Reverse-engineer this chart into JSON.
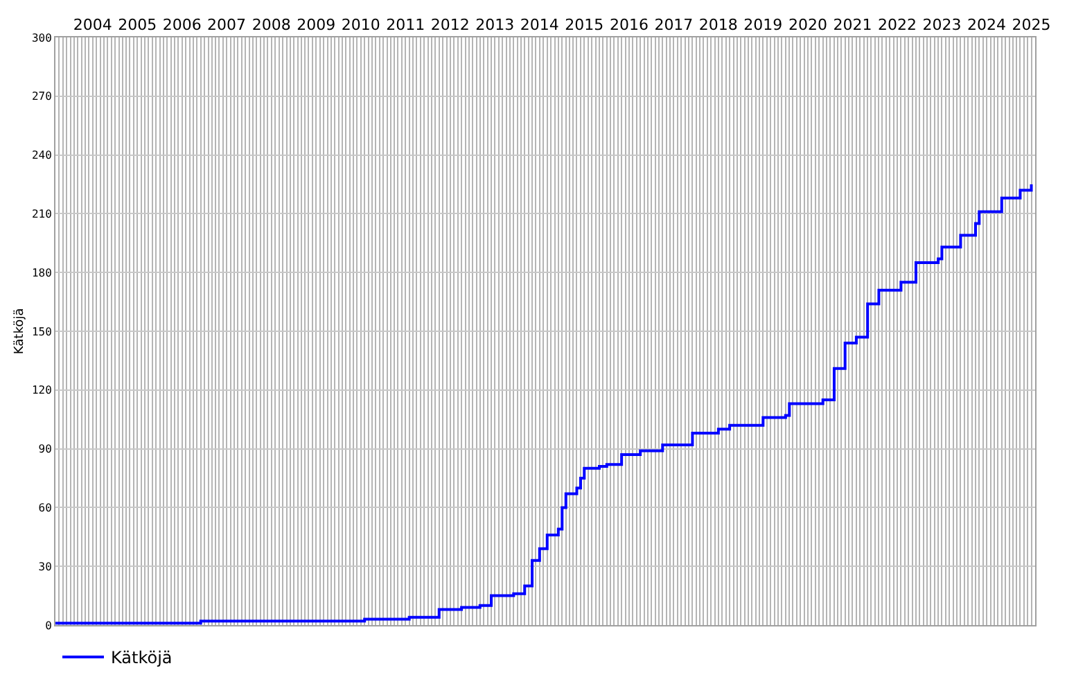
{
  "chart_data": {
    "type": "step",
    "ylabel": "Kätköjä",
    "x": [
      "2003-09",
      "2006-11",
      "2006-12",
      "2010-07",
      "2010-08",
      "2011-07",
      "2011-08",
      "2012-03",
      "2012-04",
      "2012-10",
      "2013-03",
      "2013-05",
      "2013-06",
      "2013-12",
      "2014-03",
      "2014-05",
      "2014-07",
      "2014-09",
      "2014-12",
      "2015-01",
      "2015-02",
      "2015-05",
      "2015-06",
      "2015-07",
      "2015-11",
      "2016-01",
      "2016-05",
      "2016-10",
      "2017-04",
      "2017-10",
      "2017-12",
      "2018-07",
      "2018-10",
      "2019-06",
      "2019-07",
      "2020-01",
      "2020-02",
      "2020-11",
      "2021-01",
      "2021-02",
      "2021-05",
      "2021-08",
      "2021-11",
      "2022-02",
      "2022-08",
      "2022-12",
      "2023-06",
      "2023-07",
      "2023-12",
      "2024-04",
      "2024-05",
      "2024-11",
      "2025-04",
      "2025-07"
    ],
    "series": [
      {
        "name": "Kätköjä",
        "color": "#0000ff",
        "values": [
          1,
          1,
          2,
          2,
          3,
          3,
          4,
          4,
          8,
          9,
          10,
          10,
          15,
          16,
          20,
          33,
          39,
          46,
          49,
          60,
          67,
          70,
          75,
          80,
          81,
          82,
          87,
          89,
          92,
          92,
          98,
          100,
          102,
          102,
          106,
          107,
          113,
          115,
          115,
          131,
          144,
          147,
          164,
          171,
          175,
          185,
          187,
          193,
          199,
          205,
          211,
          218,
          222,
          225
        ]
      }
    ],
    "xlim": [
      "2003-09-01",
      "2025-08-01"
    ],
    "xticks": [
      {
        "value": "2004-07-01",
        "label": "2004"
      },
      {
        "value": "2005-07-01",
        "label": "2005"
      },
      {
        "value": "2006-07-01",
        "label": "2006"
      },
      {
        "value": "2007-07-01",
        "label": "2007"
      },
      {
        "value": "2008-07-01",
        "label": "2008"
      },
      {
        "value": "2009-07-01",
        "label": "2009"
      },
      {
        "value": "2010-07-01",
        "label": "2010"
      },
      {
        "value": "2011-07-01",
        "label": "2011"
      },
      {
        "value": "2012-07-01",
        "label": "2012"
      },
      {
        "value": "2013-07-01",
        "label": "2013"
      },
      {
        "value": "2014-07-01",
        "label": "2014"
      },
      {
        "value": "2015-07-01",
        "label": "2015"
      },
      {
        "value": "2016-07-01",
        "label": "2016"
      },
      {
        "value": "2017-07-01",
        "label": "2017"
      },
      {
        "value": "2018-07-01",
        "label": "2018"
      },
      {
        "value": "2019-07-01",
        "label": "2019"
      },
      {
        "value": "2020-07-01",
        "label": "2020"
      },
      {
        "value": "2021-07-01",
        "label": "2021"
      },
      {
        "value": "2022-07-01",
        "label": "2022"
      },
      {
        "value": "2023-07-01",
        "label": "2023"
      },
      {
        "value": "2024-07-01",
        "label": "2024"
      },
      {
        "value": "2025-07-01",
        "label": "2025"
      }
    ],
    "ylim": [
      0,
      300
    ],
    "yticks": [
      0,
      30,
      60,
      90,
      120,
      150,
      180,
      210,
      240,
      270,
      300
    ],
    "grid": true,
    "legend": "bottom left",
    "marker": "none",
    "line_style": "solid"
  }
}
